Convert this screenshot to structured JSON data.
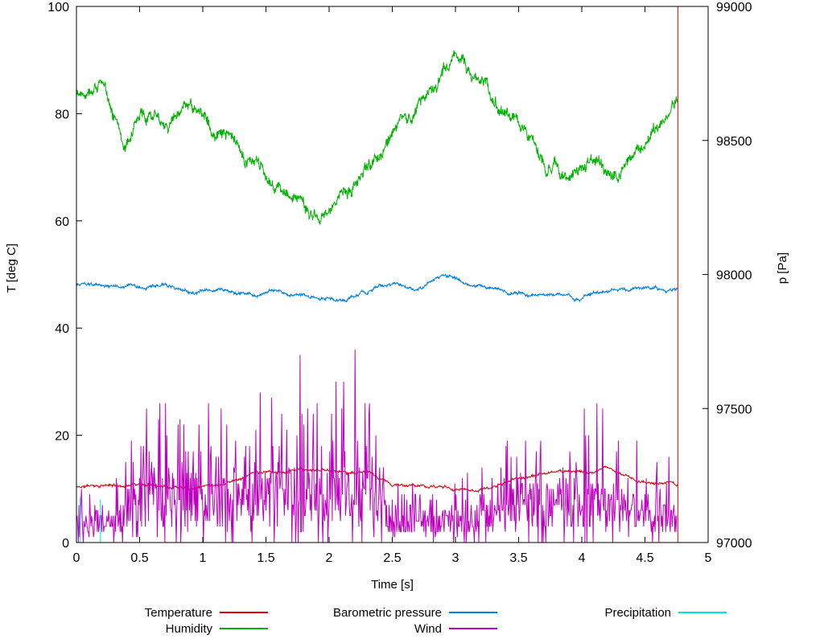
{
  "chart_data": {
    "type": "line",
    "title": "",
    "xlabel": "Time [s]",
    "ylabel_left": "T [deg C]",
    "ylabel_right": "p [Pa]",
    "xlim": [
      0,
      5
    ],
    "ylim_left": [
      0,
      100
    ],
    "ylim_right": [
      97000,
      99000
    ],
    "grid": false,
    "xtick_values": [
      0,
      0.5,
      1,
      1.5,
      2,
      2.5,
      3,
      3.5,
      4,
      4.5,
      5
    ],
    "xtick_labels": [
      "0",
      "0.5",
      "1",
      "1.5",
      "2",
      "2.5",
      "3",
      "3.5",
      "4",
      "4.5",
      "5"
    ],
    "ytick_left_values": [
      0,
      20,
      40,
      60,
      80,
      100
    ],
    "ytick_left_labels": [
      "0",
      "20",
      "40",
      "60",
      "80",
      "100"
    ],
    "ytick_right_values": [
      97000,
      97500,
      98000,
      98500,
      99000
    ],
    "ytick_right_labels": [
      "97000",
      "97500",
      "98000",
      "98500",
      "99000"
    ],
    "legend": {
      "position": "below",
      "entries": [
        {
          "label": "Temperature",
          "color": "#e00000"
        },
        {
          "label": "Humidity",
          "color": "#00b300"
        },
        {
          "label": "Barometric pressure",
          "color": "#0080e0"
        },
        {
          "label": "Wind",
          "color": "#c000c0"
        },
        {
          "label": "Precipitation",
          "color": "#00e0e0"
        }
      ]
    },
    "series": [
      {
        "name": "Temperature",
        "color": "#e00000",
        "axis": "left",
        "kind": "noisy",
        "points": 1200,
        "seed": 11,
        "walk": 0.25,
        "jitter": 0.3,
        "vline": [
          4.76,
          0,
          100
        ],
        "anchors": [
          [
            0,
            10.3
          ],
          [
            0.2,
            10.8
          ],
          [
            0.35,
            10.5
          ],
          [
            0.5,
            11.3
          ],
          [
            0.6,
            10.8
          ],
          [
            0.8,
            11.0
          ],
          [
            1.0,
            11.2
          ],
          [
            1.15,
            11.5
          ],
          [
            1.3,
            12.5
          ],
          [
            1.4,
            13.3
          ],
          [
            1.55,
            13.0
          ],
          [
            1.7,
            13.2
          ],
          [
            1.85,
            13.0
          ],
          [
            2.0,
            13.3
          ],
          [
            2.15,
            13.2
          ],
          [
            2.3,
            13.0
          ],
          [
            2.4,
            11.5
          ],
          [
            2.5,
            10.5
          ],
          [
            2.7,
            10.3
          ],
          [
            2.9,
            10.2
          ],
          [
            3.1,
            9.9
          ],
          [
            3.2,
            10.0
          ],
          [
            3.35,
            10.8
          ],
          [
            3.5,
            12.0
          ],
          [
            3.65,
            12.5
          ],
          [
            3.8,
            13.0
          ],
          [
            3.95,
            13.5
          ],
          [
            4.1,
            13.2
          ],
          [
            4.2,
            13.6
          ],
          [
            4.3,
            12.8
          ],
          [
            4.45,
            11.5
          ],
          [
            4.6,
            11.2
          ],
          [
            4.7,
            10.8
          ],
          [
            4.76,
            10.4
          ]
        ]
      },
      {
        "name": "Humidity",
        "color": "#00b300",
        "axis": "left",
        "kind": "noisy",
        "points": 1600,
        "seed": 22,
        "walk": 1.0,
        "jitter": 1.4,
        "anchors": [
          [
            0,
            84
          ],
          [
            0.12,
            87
          ],
          [
            0.18,
            87.5
          ],
          [
            0.28,
            82
          ],
          [
            0.38,
            75.5
          ],
          [
            0.5,
            79
          ],
          [
            0.62,
            81
          ],
          [
            0.75,
            80
          ],
          [
            0.9,
            80.5
          ],
          [
            1.0,
            78.5
          ],
          [
            1.1,
            77
          ],
          [
            1.3,
            72.5
          ],
          [
            1.45,
            68
          ],
          [
            1.6,
            66.5
          ],
          [
            1.75,
            64
          ],
          [
            1.88,
            61.5
          ],
          [
            1.96,
            60.5
          ],
          [
            2.05,
            63
          ],
          [
            2.2,
            66
          ],
          [
            2.35,
            70
          ],
          [
            2.45,
            75
          ],
          [
            2.55,
            80
          ],
          [
            2.62,
            78
          ],
          [
            2.72,
            81.5
          ],
          [
            2.82,
            85
          ],
          [
            2.9,
            88
          ],
          [
            3.0,
            91.5
          ],
          [
            3.08,
            89.5
          ],
          [
            3.18,
            87
          ],
          [
            3.28,
            84.5
          ],
          [
            3.4,
            80.5
          ],
          [
            3.5,
            76
          ],
          [
            3.62,
            73
          ],
          [
            3.72,
            71.5
          ],
          [
            3.82,
            70
          ],
          [
            3.92,
            68.5
          ],
          [
            4.05,
            71
          ],
          [
            4.15,
            69.5
          ],
          [
            4.28,
            68
          ],
          [
            4.4,
            71
          ],
          [
            4.5,
            73.5
          ],
          [
            4.6,
            76
          ],
          [
            4.68,
            78.5
          ],
          [
            4.76,
            84
          ]
        ]
      },
      {
        "name": "Barometric pressure",
        "color": "#0080e0",
        "axis": "right",
        "kind": "noisy",
        "points": 1600,
        "seed": 33,
        "walk": 6,
        "jitter": 6,
        "anchors": [
          [
            0,
            97962
          ],
          [
            0.3,
            97955
          ],
          [
            0.6,
            97945
          ],
          [
            0.9,
            97935
          ],
          [
            1.2,
            97930
          ],
          [
            1.4,
            97925
          ],
          [
            1.6,
            97930
          ],
          [
            1.8,
            97920
          ],
          [
            2.0,
            97915
          ],
          [
            2.1,
            97905
          ],
          [
            2.25,
            97925
          ],
          [
            2.4,
            97955
          ],
          [
            2.6,
            97950
          ],
          [
            2.75,
            97960
          ],
          [
            2.9,
            97985
          ],
          [
            3.0,
            97975
          ],
          [
            3.2,
            97950
          ],
          [
            3.35,
            97945
          ],
          [
            3.5,
            97930
          ],
          [
            3.65,
            97920
          ],
          [
            3.8,
            97935
          ],
          [
            4.0,
            97925
          ],
          [
            4.2,
            97935
          ],
          [
            4.4,
            97940
          ],
          [
            4.6,
            97945
          ],
          [
            4.76,
            97950
          ]
        ]
      },
      {
        "name": "Wind",
        "color": "#c000c0",
        "axis": "left",
        "kind": "spiky",
        "points": 950,
        "seed": 44,
        "anchors": [
          [
            0,
            3
          ],
          [
            0.35,
            3.5
          ],
          [
            0.45,
            7
          ],
          [
            0.7,
            7.5
          ],
          [
            0.95,
            8
          ],
          [
            1.2,
            7
          ],
          [
            1.5,
            8
          ],
          [
            1.8,
            8
          ],
          [
            2.1,
            8
          ],
          [
            2.35,
            7
          ],
          [
            2.5,
            4
          ],
          [
            2.8,
            3.5
          ],
          [
            3.1,
            3.5
          ],
          [
            3.35,
            5
          ],
          [
            3.5,
            7
          ],
          [
            3.8,
            7
          ],
          [
            4.1,
            7
          ],
          [
            4.4,
            5.5
          ],
          [
            4.6,
            5
          ],
          [
            4.75,
            4
          ]
        ],
        "env": [
          [
            0,
            5
          ],
          [
            0.4,
            8
          ],
          [
            0.55,
            14
          ],
          [
            0.8,
            18
          ],
          [
            0.92,
            24
          ],
          [
            1.05,
            15
          ],
          [
            1.3,
            12
          ],
          [
            1.5,
            13
          ],
          [
            1.75,
            16
          ],
          [
            2.0,
            21
          ],
          [
            2.15,
            19
          ],
          [
            2.35,
            19
          ],
          [
            2.5,
            8
          ],
          [
            2.7,
            5
          ],
          [
            3.0,
            6
          ],
          [
            3.3,
            7
          ],
          [
            3.45,
            14
          ],
          [
            3.6,
            11
          ],
          [
            3.9,
            13
          ],
          [
            4.1,
            12
          ],
          [
            4.3,
            9
          ],
          [
            4.5,
            9
          ],
          [
            4.7,
            8
          ],
          [
            4.75,
            6
          ]
        ]
      },
      {
        "name": "Precipitation",
        "color": "#00e0e0",
        "axis": "left",
        "kind": "segments",
        "segments": [
          [
            [
              0.03,
              0
            ],
            [
              0.03,
              8.5
            ]
          ],
          [
            [
              0.19,
              0
            ],
            [
              0.19,
              8
            ]
          ]
        ]
      }
    ]
  }
}
